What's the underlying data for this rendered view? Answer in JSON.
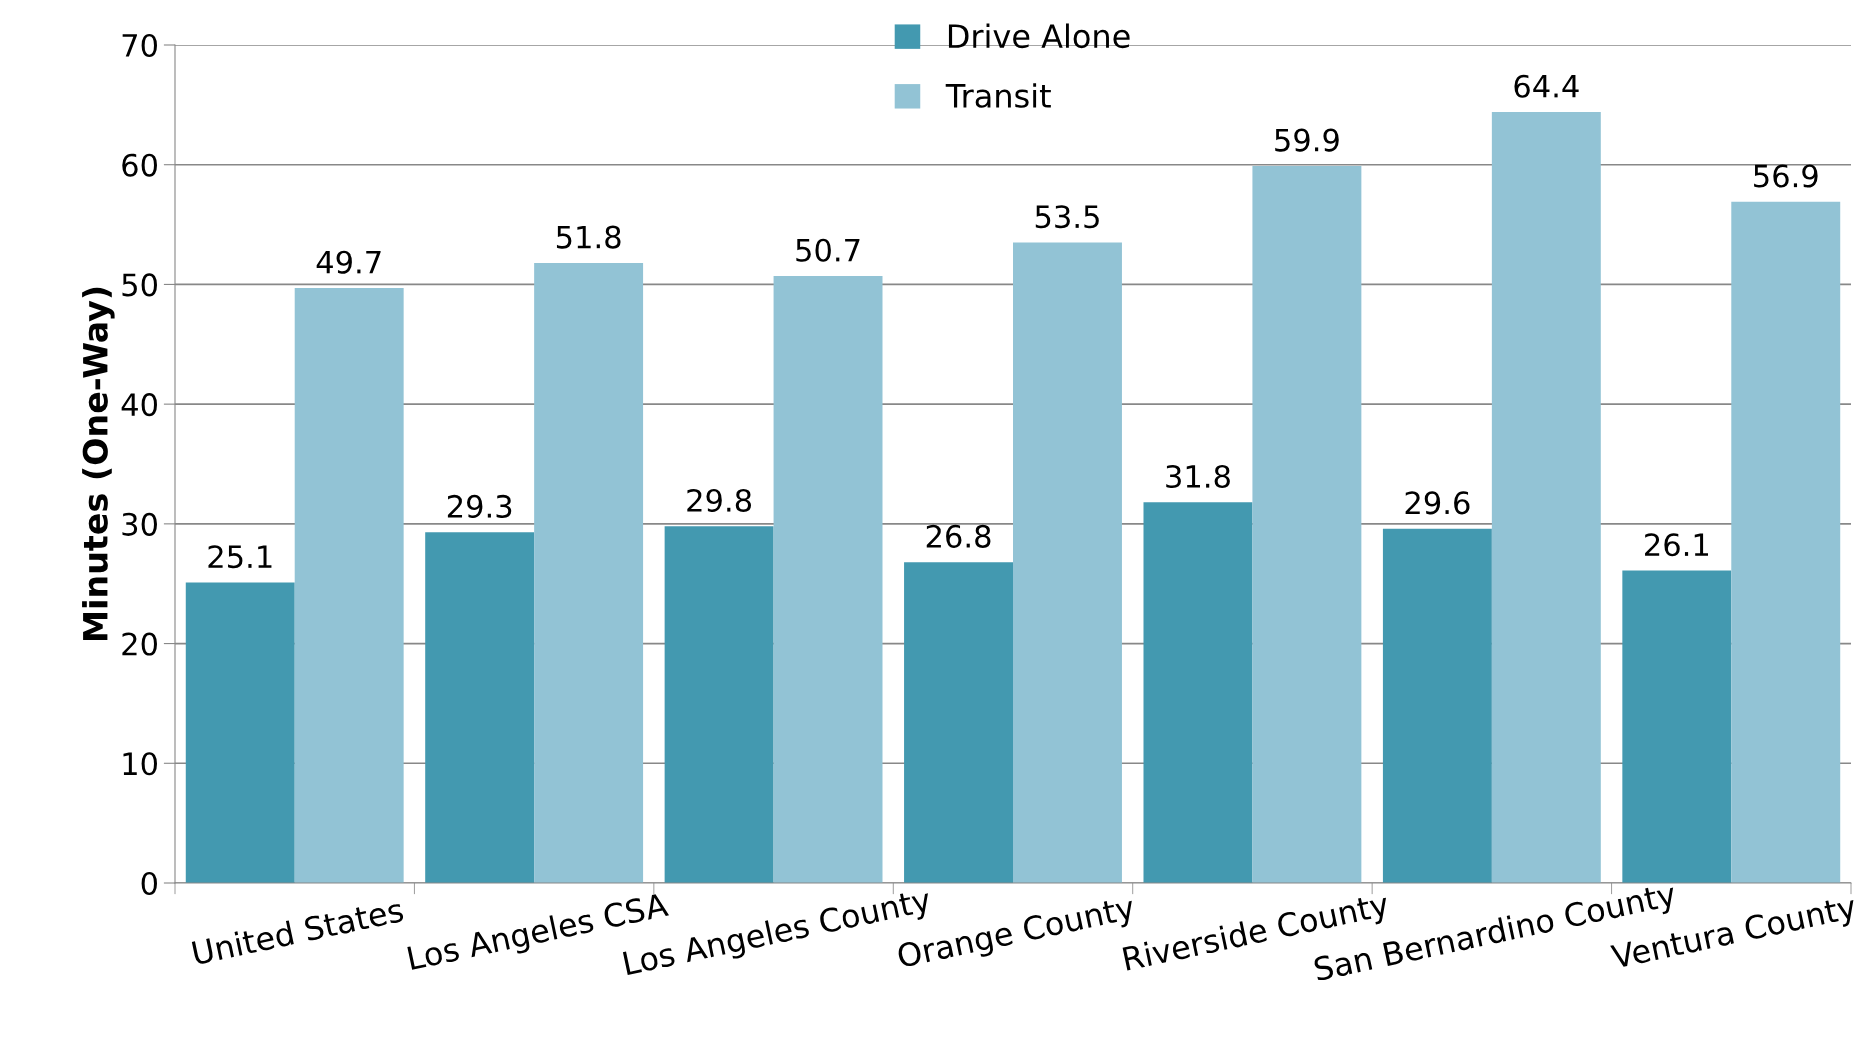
{
  "chart_data": {
    "type": "bar",
    "ylabel": "Minutes (One-Way)",
    "categories": [
      "United States",
      "Los Angeles CSA",
      "Los Angeles County",
      "Orange County",
      "Riverside County",
      "San Bernardino County",
      "Ventura County"
    ],
    "series": [
      {
        "name": "Drive Alone",
        "color": "#4399b0",
        "values": [
          25.1,
          29.3,
          29.8,
          26.8,
          31.8,
          29.6,
          26.1
        ]
      },
      {
        "name": "Transit",
        "color": "#92c3d5",
        "values": [
          49.7,
          51.8,
          50.7,
          53.5,
          59.9,
          64.4,
          56.9
        ]
      }
    ],
    "ylim": [
      0,
      70
    ],
    "yticks": [
      0,
      10,
      20,
      30,
      40,
      50,
      60,
      70
    ],
    "grid": "y",
    "legend": "top",
    "data_labels": true
  }
}
